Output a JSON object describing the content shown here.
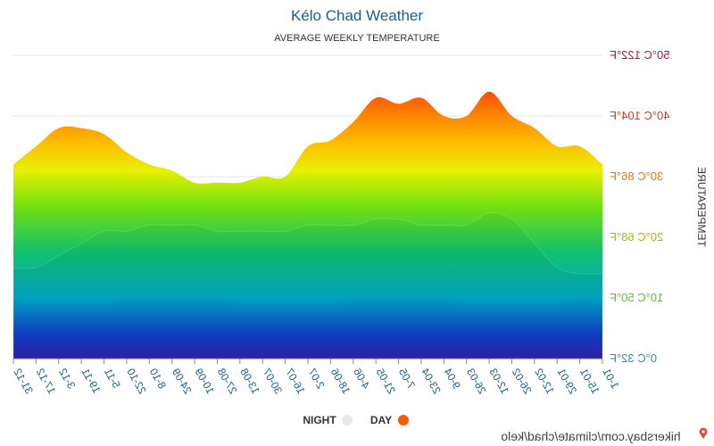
{
  "chart_data": {
    "type": "area",
    "title": "Kélo Chad Weather",
    "subtitle": "AVERAGE WEEKLY TEMPERATURE",
    "ylabel": "TEMPERATURE",
    "ylim": [
      0,
      50
    ],
    "y_ticks": [
      {
        "value": 0,
        "label": "0°C 32°F",
        "color": "#2b8cbe"
      },
      {
        "value": 10,
        "label": "10°C 50°F",
        "color": "#5fbf2a"
      },
      {
        "value": 20,
        "label": "20°C 68°F",
        "color": "#a8b800"
      },
      {
        "value": 30,
        "label": "30°C 86°F",
        "color": "#e0760f"
      },
      {
        "value": 40,
        "label": "40°C 104°F",
        "color": "#d9341c"
      },
      {
        "value": 50,
        "label": "50°C 122°F",
        "color": "#c40c2a"
      }
    ],
    "x": [
      "1-01",
      "15-01",
      "29-01",
      "12-02",
      "26-02",
      "12-03",
      "26-03",
      "9-04",
      "23-04",
      "7-05",
      "21-05",
      "4-06",
      "18-06",
      "2-07",
      "16-07",
      "30-07",
      "13-08",
      "27-08",
      "10-09",
      "24-09",
      "8-10",
      "22-10",
      "5-11",
      "19-11",
      "3-12",
      "17-12",
      "31-12"
    ],
    "series": [
      {
        "name": "DAY",
        "color": "#f25c05",
        "values": [
          32,
          35,
          35,
          38,
          40,
          44,
          40,
          40,
          43,
          42,
          43,
          39,
          36,
          35,
          30,
          30,
          29,
          29,
          29,
          31,
          32,
          34,
          37,
          38,
          38,
          35,
          32
        ]
      },
      {
        "name": "NIGHT",
        "color": "#e8e8ee",
        "values": [
          14,
          14,
          15,
          19,
          23,
          24,
          22,
          22,
          22,
          23,
          23,
          22,
          22,
          22,
          21,
          21,
          21,
          21,
          22,
          22,
          22,
          21,
          21,
          19,
          17,
          15,
          15
        ]
      }
    ],
    "grid": true,
    "legend_position": "bottom-center"
  },
  "legend": {
    "day_label": "DAY",
    "night_label": "NIGHT",
    "day_color": "#f25c05",
    "night_color": "#e8e8ee"
  },
  "source": "hikersbay.com/climate/chad/kelo",
  "source_icon": "map-pin-icon"
}
